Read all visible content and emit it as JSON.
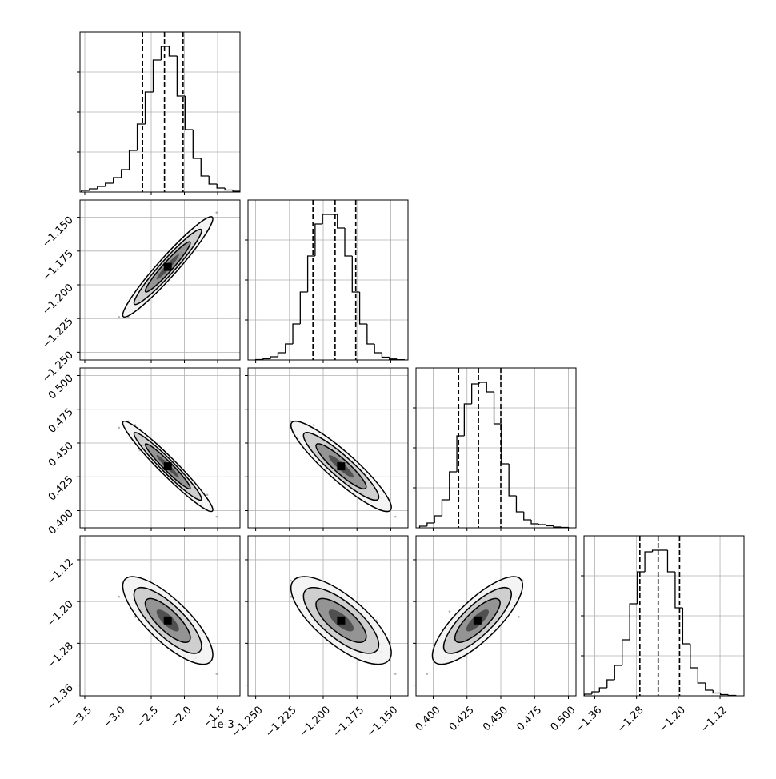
{
  "chart_data": {
    "type": "corner",
    "offset_label": "1e-3",
    "params": [
      {
        "lim": [
          -3.572,
          -1.163
        ],
        "ticks": [
          {
            "value": -3.5,
            "label": "−3.5"
          },
          {
            "value": -3.0,
            "label": "−3.0"
          },
          {
            "value": -2.5,
            "label": "−2.5"
          },
          {
            "value": -2.0,
            "label": "−2.0"
          },
          {
            "value": -1.5,
            "label": "−1.5"
          }
        ]
      },
      {
        "lim": [
          -1.2557,
          -1.1372
        ],
        "ticks": [
          {
            "value": -1.25,
            "label": "−1.250"
          },
          {
            "value": -1.225,
            "label": "−1.225"
          },
          {
            "value": -1.2,
            "label": "−1.200"
          },
          {
            "value": -1.175,
            "label": "−1.175"
          },
          {
            "value": -1.15,
            "label": "−1.150"
          }
        ]
      },
      {
        "lim": [
          0.3873,
          0.5056
        ],
        "ticks": [
          {
            "value": 0.4,
            "label": "0.400"
          },
          {
            "value": 0.425,
            "label": "0.425"
          },
          {
            "value": 0.45,
            "label": "0.450"
          },
          {
            "value": 0.475,
            "label": "0.475"
          },
          {
            "value": 0.5,
            "label": "0.500"
          }
        ]
      },
      {
        "lim": [
          -1.3806,
          -1.0741
        ],
        "ticks": [
          {
            "value": -1.36,
            "label": "−1.36"
          },
          {
            "value": -1.28,
            "label": "−1.28"
          },
          {
            "value": -1.2,
            "label": "−1.20"
          },
          {
            "value": -1.12,
            "label": "−1.12"
          }
        ]
      }
    ],
    "histograms": [
      {
        "bins": [
          -3.55,
          -3.43,
          -3.31,
          -3.19,
          -3.07,
          -2.95,
          -2.83,
          -2.71,
          -2.59,
          -2.47,
          -2.35,
          -2.23,
          -2.11,
          -1.99,
          -1.87,
          -1.75,
          -1.63,
          -1.51,
          -1.39,
          -1.27,
          -1.15
        ],
        "counts": [
          20,
          40,
          70,
          110,
          180,
          280,
          520,
          850,
          1250,
          1650,
          1820,
          1700,
          1200,
          780,
          420,
          200,
          100,
          50,
          25,
          10
        ],
        "quantiles": [
          -2.63,
          -2.3,
          -2.02
        ]
      },
      {
        "bins": [
          -1.25,
          -1.2445,
          -1.239,
          -1.2335,
          -1.228,
          -1.2225,
          -1.217,
          -1.2115,
          -1.206,
          -1.2005,
          -1.195,
          -1.1895,
          -1.184,
          -1.1785,
          -1.173,
          -1.1675,
          -1.162,
          -1.1565,
          -1.151,
          -1.1455,
          -1.14
        ],
        "counts": [
          5,
          15,
          40,
          90,
          200,
          450,
          850,
          1300,
          1700,
          1820,
          1820,
          1650,
          1300,
          850,
          450,
          200,
          90,
          35,
          12,
          4
        ],
        "quantiles": [
          -1.2076,
          -1.1912,
          -1.1759
        ]
      },
      {
        "bins": [
          0.39,
          0.3955,
          0.401,
          0.4065,
          0.412,
          0.4175,
          0.423,
          0.4285,
          0.434,
          0.4395,
          0.445,
          0.4505,
          0.456,
          0.4615,
          0.467,
          0.4725,
          0.478,
          0.4835,
          0.489,
          0.4945,
          0.5
        ],
        "counts": [
          20,
          60,
          150,
          350,
          700,
          1150,
          1550,
          1800,
          1820,
          1700,
          1300,
          800,
          400,
          200,
          100,
          50,
          40,
          25,
          10,
          5
        ],
        "quantiles": [
          0.4188,
          0.4335,
          0.45
        ]
      },
      {
        "bins": [
          -1.38,
          -1.3655,
          -1.351,
          -1.3365,
          -1.322,
          -1.3075,
          -1.293,
          -1.2785,
          -1.264,
          -1.2495,
          -1.235,
          -1.2205,
          -1.206,
          -1.1915,
          -1.177,
          -1.1625,
          -1.148,
          -1.1335,
          -1.119,
          -1.1045,
          -1.09
        ],
        "counts": [
          20,
          50,
          100,
          200,
          380,
          700,
          1150,
          1550,
          1800,
          1820,
          1820,
          1550,
          1100,
          650,
          350,
          160,
          70,
          35,
          15,
          5
        ],
        "quantiles": [
          -1.2736,
          -1.2385,
          -1.1975
        ]
      }
    ],
    "hist_ylim": [
      0,
      2000
    ],
    "hist_yticks": [
      500,
      1000,
      1500
    ],
    "grid": true,
    "samples": [
      [
        -2.985,
        -1.2239,
        0.4613,
        -1.1909
      ],
      [
        -2.845,
        -1.2241,
        0.4661,
        -1.1598
      ],
      [
        -2.74,
        -1.207,
        0.4633,
        -1.2293
      ],
      [
        -2.67,
        -1.2116,
        0.4447,
        -1.1915
      ],
      [
        -2.6,
        -1.2018,
        0.4486,
        -1.1745
      ],
      [
        -2.548,
        -1.2104,
        0.4513,
        -1.2182
      ],
      [
        -2.495,
        -1.1991,
        0.4418,
        -1.2411
      ],
      [
        -2.443,
        -1.1921,
        0.4429,
        -1.1778
      ],
      [
        -2.408,
        -1.1992,
        0.4341,
        -1.2376
      ],
      [
        -2.373,
        -1.1852,
        0.4438,
        -1.2113
      ],
      [
        -2.338,
        -1.1924,
        0.4355,
        -1.2503
      ],
      [
        -2.303,
        -1.1953,
        0.439,
        -1.2091
      ],
      [
        -2.268,
        -1.1855,
        0.4297,
        -1.2422
      ],
      [
        -2.233,
        -1.18,
        0.4342,
        -1.207
      ],
      [
        -2.198,
        -1.192,
        0.4275,
        -1.2757
      ],
      [
        -2.163,
        -1.1786,
        0.4356,
        -1.2375
      ],
      [
        -2.128,
        -1.1827,
        0.4222,
        -1.2617
      ],
      [
        -2.093,
        -1.1736,
        0.4237,
        -1.2235
      ],
      [
        -2.058,
        -1.1807,
        0.4287,
        -1.2565
      ],
      [
        -2.005,
        -1.1719,
        0.4222,
        -1.3032
      ],
      [
        -1.953,
        -1.1768,
        0.4121,
        -1.2191
      ],
      [
        -1.9,
        -1.1608,
        0.4199,
        -1.2361
      ],
      [
        -1.83,
        -1.1654,
        0.409,
        -1.3082
      ],
      [
        -1.76,
        -1.1574,
        0.4094,
        -1.2971
      ],
      [
        -1.655,
        -1.1601,
        0.4117,
        -1.2686
      ],
      [
        -1.515,
        -1.1465,
        0.3955,
        -1.3385
      ],
      [
        -2.46,
        -1.1894,
        0.4442,
        -1.2058
      ],
      [
        -2.04,
        -1.1846,
        0.4177,
        -1.276
      ],
      [
        -2.355,
        -1.1993,
        0.4419,
        -1.1892
      ],
      [
        -2.145,
        -1.1747,
        0.4256,
        -1.2511
      ]
    ]
  }
}
